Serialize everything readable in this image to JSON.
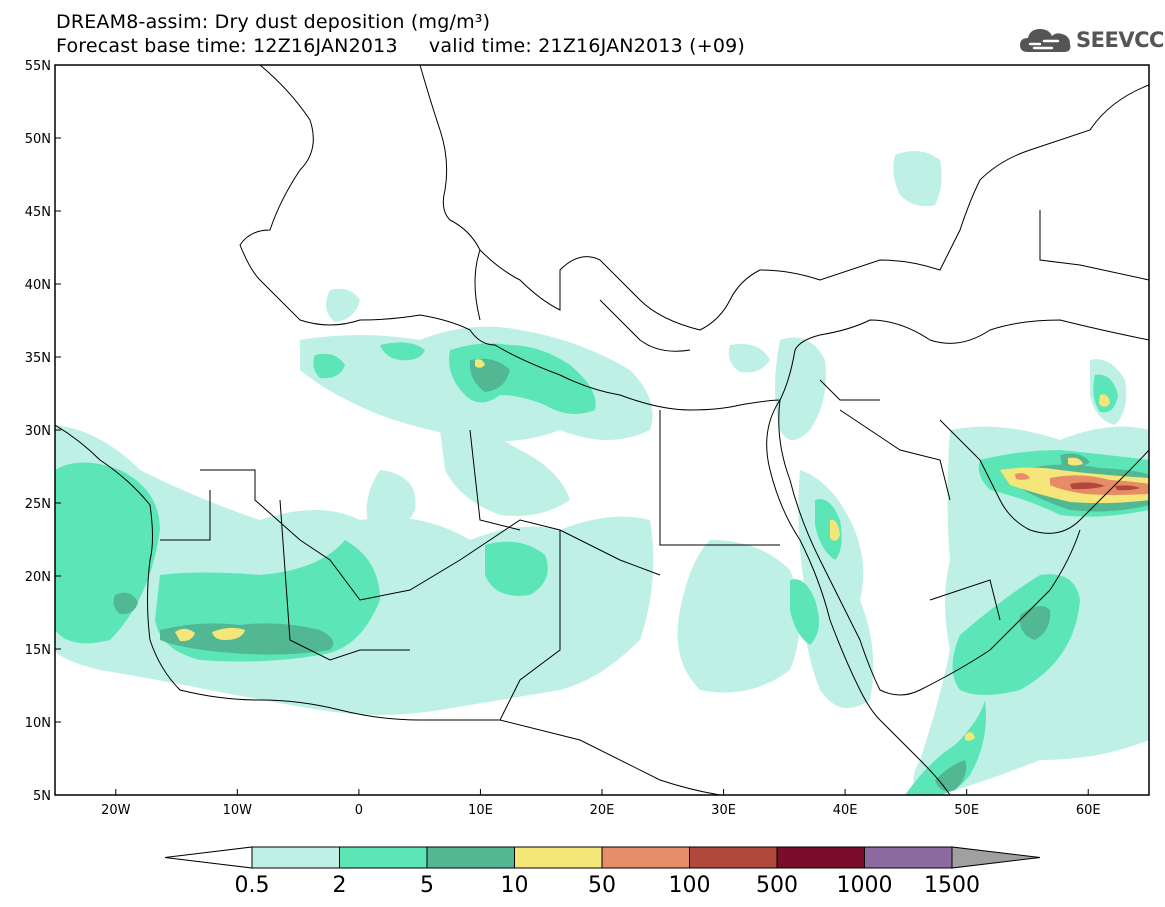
{
  "header": {
    "title_line1": "DREAM8-assim: Dry dust deposition (mg/m³)",
    "title_line2": "Forecast base time: 12Z16JAN2013     valid time: 21Z16JAN2013 (+09)"
  },
  "logo": {
    "text": "SEEVCCC",
    "icon": "cloud-logo-icon"
  },
  "map": {
    "lon_range": [
      -25,
      65
    ],
    "lat_range": [
      5,
      55
    ],
    "lon_ticks": [
      {
        "value": -20,
        "label": "20W"
      },
      {
        "value": -10,
        "label": "10W"
      },
      {
        "value": 0,
        "label": "0"
      },
      {
        "value": 10,
        "label": "10E"
      },
      {
        "value": 20,
        "label": "20E"
      },
      {
        "value": 30,
        "label": "30E"
      },
      {
        "value": 40,
        "label": "40E"
      },
      {
        "value": 50,
        "label": "50E"
      },
      {
        "value": 60,
        "label": "60E"
      }
    ],
    "lat_ticks": [
      {
        "value": 55,
        "label": "55N"
      },
      {
        "value": 50,
        "label": "50N"
      },
      {
        "value": 45,
        "label": "45N"
      },
      {
        "value": 40,
        "label": "40N"
      },
      {
        "value": 35,
        "label": "35N"
      },
      {
        "value": 30,
        "label": "30N"
      },
      {
        "value": 25,
        "label": "25N"
      },
      {
        "value": 20,
        "label": "20N"
      },
      {
        "value": 15,
        "label": "15N"
      },
      {
        "value": 10,
        "label": "10N"
      },
      {
        "value": 5,
        "label": "5N"
      }
    ]
  },
  "colorbar": {
    "labels": [
      "0.5",
      "2",
      "5",
      "10",
      "50",
      "100",
      "500",
      "1000",
      "1500"
    ],
    "colors": [
      "#bff0e6",
      "#5ce6b8",
      "#52b894",
      "#f5e67a",
      "#e68c66",
      "#b0483c",
      "#7a0e2a",
      "#8c6aa0"
    ],
    "under_color": "#ffffff",
    "over_color": "#a0a0a0"
  },
  "dust_colors": {
    "level1": "#bff0e6",
    "level2": "#5ce6b8",
    "level3": "#52b894",
    "level4": "#f5e67a",
    "level5": "#e68c66",
    "level6": "#b0483c"
  }
}
